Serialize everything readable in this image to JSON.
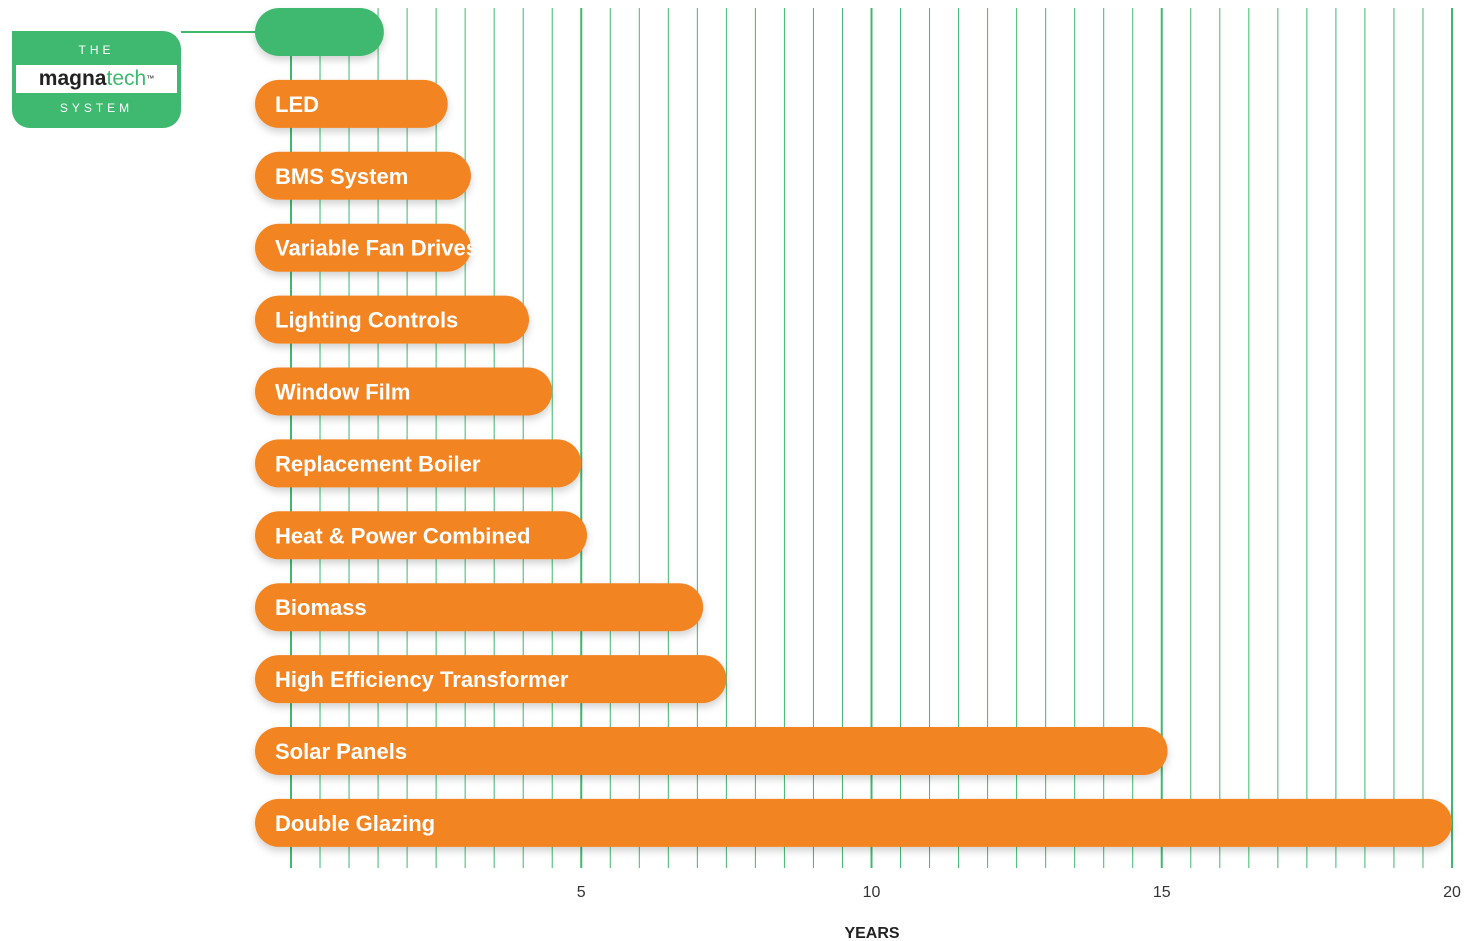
{
  "chart_data": {
    "type": "bar",
    "orientation": "horizontal",
    "categories": [
      "",
      "LED",
      "BMS System",
      "Variable Fan Drives",
      "Lighting Controls",
      "Window Film",
      "Replacement Boiler",
      "Heat & Power Combined",
      "Biomass",
      "High Efficiency Transformer",
      "Solar Panels",
      "Double Glazing"
    ],
    "values": [
      1.6,
      2.7,
      3.1,
      3.1,
      4.1,
      4.5,
      5.0,
      5.1,
      7.1,
      7.5,
      15.1,
      20.0
    ],
    "xlabel": "YEARS",
    "ylabel": "",
    "xlim": [
      0,
      20
    ],
    "xticks": [
      "5",
      "10",
      "15",
      "20"
    ],
    "gridlines": "vertical",
    "highlight_category_index": 0
  },
  "colors": {
    "bar": "#f38424",
    "highlight_bar": "#3fb96f",
    "grid": "#3fb96f",
    "background": "#ffffff"
  },
  "badge": {
    "top": "THE",
    "brand_a": "magna",
    "brand_b": "tech",
    "trademark": "™",
    "bottom": "SYSTEM"
  }
}
